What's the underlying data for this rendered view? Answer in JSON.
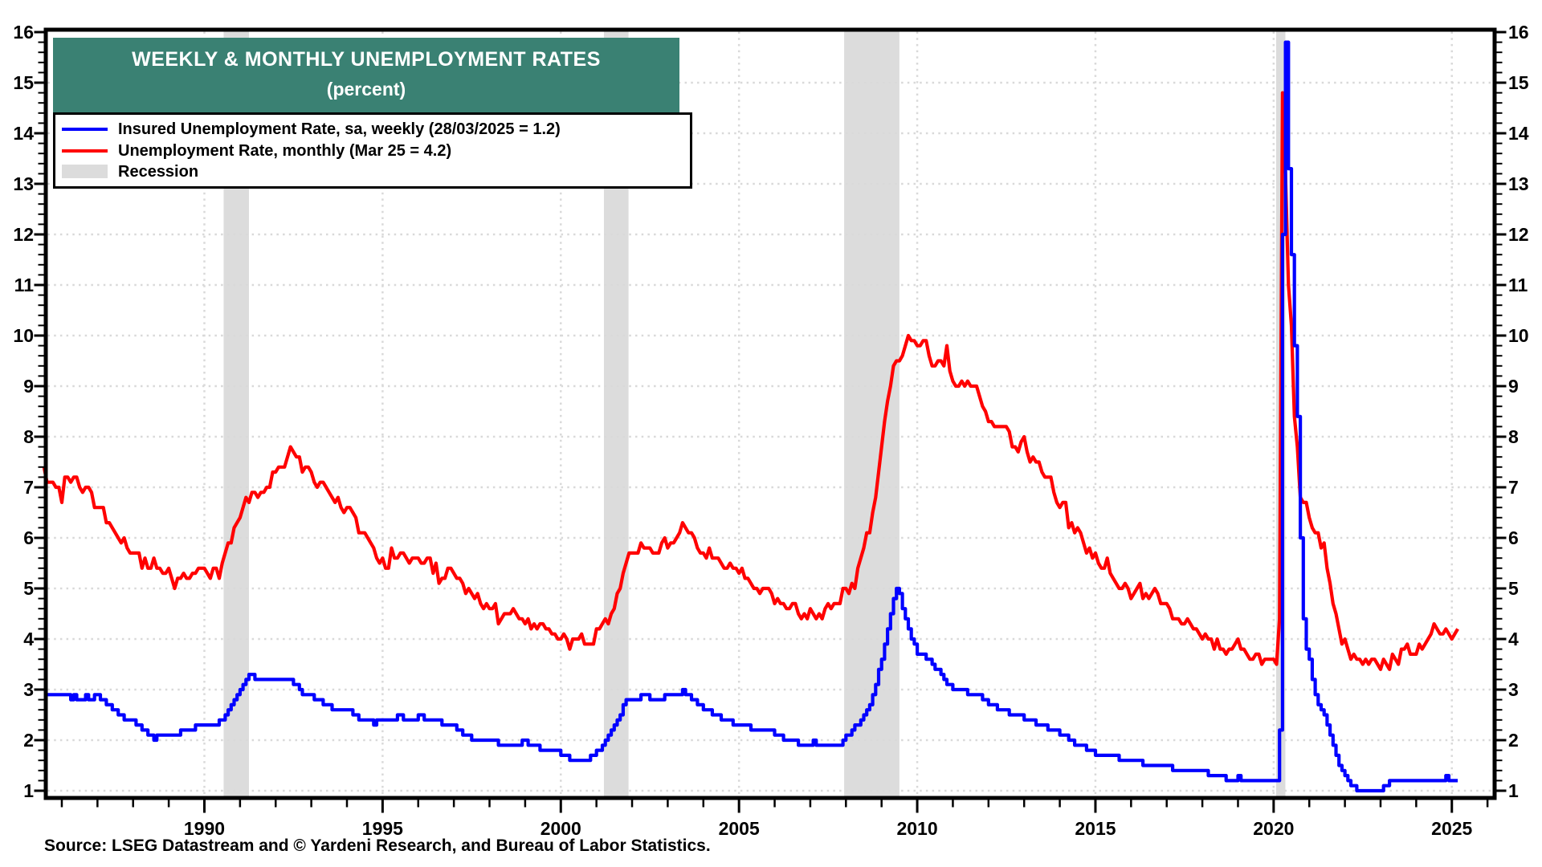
{
  "title": {
    "line1": "WEEKLY & MONTHLY UNEMPLOYMENT RATES",
    "line2": "(percent)"
  },
  "legend": {
    "items": [
      {
        "label": "Insured Unemployment Rate, sa, weekly (28/03/2025 = 1.2)",
        "swatch": "line",
        "color": "#0000FF"
      },
      {
        "label": "Unemployment Rate, monthly (Mar 25 = 4.2)",
        "swatch": "line",
        "color": "#FF0000"
      },
      {
        "label": "Recession",
        "swatch": "box",
        "color": "#DCDCDC"
      }
    ]
  },
  "source": {
    "text": "Source: LSEG Datastream and © Yardeni Research, and Bureau of Labor Statistics."
  },
  "colors": {
    "title_bg": "#3A8173",
    "insured_line": "#0000FF",
    "unemployment_line": "#FF0000",
    "recession_band": "#DCDCDC",
    "grid": "#D9D9D9",
    "axis": "#000000"
  },
  "chart_data": {
    "type": "line",
    "title": "WEEKLY & MONTHLY UNEMPLOYMENT RATES (percent)",
    "xlabel": "",
    "ylabel": "",
    "x_axis": {
      "start": 1985.55,
      "end": 2026.2,
      "major_ticks": [
        1990,
        1995,
        2000,
        2005,
        2010,
        2015,
        2020,
        2025
      ],
      "minor_step": 1
    },
    "y_axis": {
      "min": 1,
      "max": 16,
      "major_step": 1,
      "minor_step": 0.2,
      "labels_both_sides": true
    },
    "grid": {
      "horizontal": true,
      "vertical": true,
      "style": "dotted"
    },
    "legend_position": "top-left",
    "recessions": [
      [
        1990.54,
        1991.25
      ],
      [
        2001.21,
        2001.9
      ],
      [
        2007.95,
        2009.5
      ],
      [
        2020.07,
        2020.33
      ]
    ],
    "series": [
      {
        "name": "Unemployment Rate, monthly (Mar 25 = 4.2)",
        "color": "#FF0000",
        "render": "linear",
        "start_year": 1985.5,
        "points_per_year": 12,
        "values": [
          7.4,
          7.1,
          7.1,
          7.1,
          7.0,
          7.0,
          6.7,
          7.2,
          7.2,
          7.1,
          7.2,
          7.2,
          7.0,
          6.9,
          7.0,
          7.0,
          6.9,
          6.6,
          6.6,
          6.6,
          6.6,
          6.3,
          6.3,
          6.2,
          6.1,
          6.0,
          5.9,
          6.0,
          5.8,
          5.7,
          5.7,
          5.7,
          5.7,
          5.4,
          5.6,
          5.4,
          5.4,
          5.6,
          5.4,
          5.4,
          5.3,
          5.3,
          5.4,
          5.2,
          5.0,
          5.2,
          5.2,
          5.3,
          5.2,
          5.2,
          5.3,
          5.3,
          5.4,
          5.4,
          5.4,
          5.3,
          5.2,
          5.4,
          5.4,
          5.2,
          5.5,
          5.7,
          5.9,
          5.9,
          6.2,
          6.3,
          6.4,
          6.6,
          6.8,
          6.7,
          6.9,
          6.9,
          6.8,
          6.9,
          6.9,
          7.0,
          7.0,
          7.3,
          7.3,
          7.4,
          7.4,
          7.4,
          7.6,
          7.8,
          7.7,
          7.6,
          7.6,
          7.3,
          7.4,
          7.4,
          7.3,
          7.1,
          7.0,
          7.1,
          7.1,
          7.0,
          6.9,
          6.8,
          6.7,
          6.8,
          6.6,
          6.5,
          6.6,
          6.6,
          6.5,
          6.4,
          6.1,
          6.1,
          6.1,
          6.0,
          5.9,
          5.8,
          5.6,
          5.5,
          5.6,
          5.4,
          5.4,
          5.8,
          5.6,
          5.6,
          5.7,
          5.7,
          5.6,
          5.5,
          5.6,
          5.6,
          5.6,
          5.5,
          5.5,
          5.6,
          5.6,
          5.3,
          5.5,
          5.1,
          5.2,
          5.2,
          5.4,
          5.4,
          5.3,
          5.2,
          5.2,
          5.1,
          4.9,
          5.0,
          4.9,
          4.8,
          4.9,
          4.7,
          4.6,
          4.7,
          4.6,
          4.6,
          4.7,
          4.3,
          4.4,
          4.5,
          4.5,
          4.5,
          4.6,
          4.5,
          4.4,
          4.4,
          4.3,
          4.4,
          4.2,
          4.3,
          4.2,
          4.3,
          4.3,
          4.2,
          4.2,
          4.1,
          4.1,
          4.0,
          4.0,
          4.1,
          4.0,
          3.8,
          4.0,
          4.0,
          4.0,
          4.1,
          3.9,
          3.9,
          3.9,
          3.9,
          4.2,
          4.2,
          4.3,
          4.4,
          4.3,
          4.5,
          4.6,
          4.9,
          5.0,
          5.3,
          5.5,
          5.7,
          5.7,
          5.7,
          5.7,
          5.9,
          5.8,
          5.8,
          5.8,
          5.7,
          5.7,
          5.7,
          5.9,
          6.0,
          5.8,
          5.9,
          5.9,
          6.0,
          6.1,
          6.3,
          6.2,
          6.1,
          6.1,
          6.0,
          5.8,
          5.7,
          5.7,
          5.6,
          5.8,
          5.6,
          5.6,
          5.6,
          5.5,
          5.4,
          5.4,
          5.5,
          5.4,
          5.4,
          5.3,
          5.4,
          5.2,
          5.2,
          5.1,
          5.0,
          5.0,
          4.9,
          5.0,
          5.0,
          5.0,
          4.9,
          4.7,
          4.8,
          4.7,
          4.7,
          4.6,
          4.6,
          4.7,
          4.7,
          4.5,
          4.4,
          4.5,
          4.4,
          4.6,
          4.5,
          4.4,
          4.5,
          4.4,
          4.6,
          4.7,
          4.6,
          4.7,
          4.7,
          4.7,
          5.0,
          5.0,
          4.9,
          5.1,
          5.0,
          5.4,
          5.6,
          5.8,
          6.1,
          6.1,
          6.5,
          6.8,
          7.3,
          7.8,
          8.3,
          8.7,
          9.0,
          9.4,
          9.5,
          9.5,
          9.6,
          9.8,
          10.0,
          9.9,
          9.9,
          9.8,
          9.8,
          9.9,
          9.9,
          9.6,
          9.4,
          9.4,
          9.5,
          9.5,
          9.4,
          9.8,
          9.3,
          9.1,
          9.0,
          9.0,
          9.1,
          9.0,
          9.1,
          9.0,
          9.0,
          9.0,
          8.8,
          8.6,
          8.5,
          8.3,
          8.3,
          8.2,
          8.2,
          8.2,
          8.2,
          8.2,
          8.1,
          7.8,
          7.8,
          7.7,
          7.9,
          8.0,
          7.7,
          7.5,
          7.6,
          7.5,
          7.5,
          7.3,
          7.2,
          7.2,
          7.2,
          6.9,
          6.7,
          6.6,
          6.7,
          6.7,
          6.2,
          6.3,
          6.1,
          6.2,
          6.1,
          5.9,
          5.7,
          5.8,
          5.6,
          5.7,
          5.5,
          5.4,
          5.4,
          5.6,
          5.3,
          5.2,
          5.1,
          5.0,
          5.0,
          5.1,
          5.0,
          4.8,
          4.9,
          5.0,
          5.1,
          4.8,
          4.9,
          4.8,
          4.9,
          5.0,
          4.9,
          4.7,
          4.7,
          4.7,
          4.6,
          4.4,
          4.4,
          4.4,
          4.3,
          4.3,
          4.4,
          4.3,
          4.2,
          4.2,
          4.1,
          4.0,
          4.1,
          4.0,
          4.0,
          3.8,
          4.0,
          3.8,
          3.8,
          3.7,
          3.8,
          3.8,
          3.9,
          4.0,
          3.8,
          3.8,
          3.7,
          3.6,
          3.6,
          3.7,
          3.7,
          3.5,
          3.6,
          3.6,
          3.6,
          3.6,
          3.5,
          4.4,
          14.8,
          13.2,
          11.0,
          10.2,
          8.4,
          7.8,
          6.8,
          6.7,
          6.7,
          6.4,
          6.2,
          6.1,
          6.1,
          5.8,
          5.9,
          5.4,
          5.1,
          4.7,
          4.5,
          4.2,
          3.9,
          4.0,
          3.8,
          3.6,
          3.7,
          3.6,
          3.6,
          3.5,
          3.6,
          3.5,
          3.6,
          3.6,
          3.5,
          3.4,
          3.6,
          3.5,
          3.4,
          3.7,
          3.6,
          3.5,
          3.8,
          3.8,
          3.9,
          3.7,
          3.7,
          3.7,
          3.9,
          3.8,
          3.9,
          4.0,
          4.1,
          4.3,
          4.2,
          4.1,
          4.1,
          4.2,
          4.1,
          4.0,
          4.1,
          4.2
        ]
      },
      {
        "name": "Insured Unemployment Rate, sa, weekly (28/03/2025 = 1.2)",
        "color": "#0000FF",
        "render": "step",
        "start_year": 1985.5,
        "points_per_year": 12,
        "values": [
          2.9,
          2.9,
          2.9,
          2.9,
          2.9,
          2.9,
          2.9,
          2.9,
          2.9,
          2.8,
          2.9,
          2.8,
          2.8,
          2.8,
          2.9,
          2.8,
          2.8,
          2.9,
          2.9,
          2.8,
          2.8,
          2.7,
          2.7,
          2.6,
          2.6,
          2.5,
          2.5,
          2.4,
          2.4,
          2.4,
          2.4,
          2.3,
          2.3,
          2.2,
          2.2,
          2.1,
          2.1,
          2.0,
          2.1,
          2.1,
          2.1,
          2.1,
          2.1,
          2.1,
          2.1,
          2.1,
          2.2,
          2.2,
          2.2,
          2.2,
          2.2,
          2.3,
          2.3,
          2.3,
          2.3,
          2.3,
          2.3,
          2.3,
          2.3,
          2.4,
          2.4,
          2.5,
          2.6,
          2.7,
          2.8,
          2.9,
          3.0,
          3.1,
          3.2,
          3.3,
          3.3,
          3.2,
          3.2,
          3.2,
          3.2,
          3.2,
          3.2,
          3.2,
          3.2,
          3.2,
          3.2,
          3.2,
          3.2,
          3.2,
          3.1,
          3.1,
          3.0,
          2.9,
          2.9,
          2.9,
          2.9,
          2.8,
          2.8,
          2.8,
          2.7,
          2.7,
          2.7,
          2.6,
          2.6,
          2.6,
          2.6,
          2.6,
          2.6,
          2.6,
          2.5,
          2.5,
          2.4,
          2.4,
          2.4,
          2.4,
          2.4,
          2.3,
          2.4,
          2.4,
          2.4,
          2.4,
          2.4,
          2.4,
          2.4,
          2.5,
          2.5,
          2.4,
          2.4,
          2.4,
          2.4,
          2.4,
          2.5,
          2.5,
          2.4,
          2.4,
          2.4,
          2.4,
          2.4,
          2.4,
          2.3,
          2.3,
          2.3,
          2.3,
          2.3,
          2.2,
          2.2,
          2.1,
          2.1,
          2.1,
          2.0,
          2.0,
          2.0,
          2.0,
          2.0,
          2.0,
          2.0,
          2.0,
          2.0,
          1.9,
          1.9,
          1.9,
          1.9,
          1.9,
          1.9,
          1.9,
          1.9,
          2.0,
          2.0,
          1.9,
          1.9,
          1.9,
          1.9,
          1.8,
          1.8,
          1.8,
          1.8,
          1.8,
          1.8,
          1.8,
          1.7,
          1.7,
          1.7,
          1.6,
          1.6,
          1.6,
          1.6,
          1.6,
          1.6,
          1.6,
          1.7,
          1.7,
          1.8,
          1.8,
          1.9,
          2.0,
          2.1,
          2.2,
          2.3,
          2.4,
          2.5,
          2.7,
          2.8,
          2.8,
          2.8,
          2.8,
          2.8,
          2.9,
          2.9,
          2.9,
          2.8,
          2.8,
          2.8,
          2.8,
          2.8,
          2.9,
          2.9,
          2.9,
          2.9,
          2.9,
          2.9,
          3.0,
          2.9,
          2.9,
          2.8,
          2.8,
          2.7,
          2.7,
          2.6,
          2.6,
          2.6,
          2.5,
          2.5,
          2.5,
          2.4,
          2.4,
          2.4,
          2.4,
          2.3,
          2.3,
          2.3,
          2.3,
          2.3,
          2.3,
          2.2,
          2.2,
          2.2,
          2.2,
          2.2,
          2.2,
          2.2,
          2.2,
          2.1,
          2.1,
          2.1,
          2.0,
          2.0,
          2.0,
          2.0,
          2.0,
          1.9,
          1.9,
          1.9,
          1.9,
          1.9,
          2.0,
          1.9,
          1.9,
          1.9,
          1.9,
          1.9,
          1.9,
          1.9,
          1.9,
          1.9,
          2.0,
          2.1,
          2.1,
          2.2,
          2.3,
          2.3,
          2.4,
          2.5,
          2.6,
          2.7,
          2.9,
          3.1,
          3.4,
          3.6,
          3.9,
          4.2,
          4.5,
          4.8,
          5.0,
          4.9,
          4.6,
          4.4,
          4.2,
          4.0,
          3.9,
          3.7,
          3.7,
          3.7,
          3.6,
          3.6,
          3.5,
          3.4,
          3.4,
          3.3,
          3.2,
          3.1,
          3.1,
          3.0,
          3.0,
          3.0,
          3.0,
          3.0,
          2.9,
          2.9,
          2.9,
          2.9,
          2.9,
          2.8,
          2.8,
          2.7,
          2.7,
          2.7,
          2.6,
          2.6,
          2.6,
          2.6,
          2.5,
          2.5,
          2.5,
          2.5,
          2.5,
          2.4,
          2.4,
          2.4,
          2.4,
          2.3,
          2.3,
          2.3,
          2.3,
          2.2,
          2.2,
          2.2,
          2.2,
          2.1,
          2.1,
          2.1,
          2.0,
          2.0,
          1.9,
          1.9,
          1.9,
          1.9,
          1.8,
          1.8,
          1.8,
          1.7,
          1.7,
          1.7,
          1.7,
          1.7,
          1.7,
          1.7,
          1.7,
          1.6,
          1.6,
          1.6,
          1.6,
          1.6,
          1.6,
          1.6,
          1.6,
          1.5,
          1.5,
          1.5,
          1.5,
          1.5,
          1.5,
          1.5,
          1.5,
          1.5,
          1.5,
          1.4,
          1.4,
          1.4,
          1.4,
          1.4,
          1.4,
          1.4,
          1.4,
          1.4,
          1.4,
          1.4,
          1.4,
          1.3,
          1.3,
          1.3,
          1.3,
          1.3,
          1.3,
          1.2,
          1.2,
          1.2,
          1.2,
          1.3,
          1.2,
          1.2,
          1.2,
          1.2,
          1.2,
          1.2,
          1.2,
          1.2,
          1.2,
          1.2,
          1.2,
          1.2,
          1.2,
          2.2,
          12.0,
          15.8,
          13.3,
          11.6,
          9.8,
          8.4,
          6.0,
          4.4,
          3.8,
          3.6,
          3.2,
          2.9,
          2.7,
          2.6,
          2.5,
          2.3,
          2.1,
          1.9,
          1.7,
          1.5,
          1.4,
          1.3,
          1.2,
          1.1,
          1.1,
          1.0,
          1.0,
          1.0,
          1.0,
          1.0,
          1.0,
          1.0,
          1.0,
          1.0,
          1.1,
          1.1,
          1.2,
          1.2,
          1.2,
          1.2,
          1.2,
          1.2,
          1.2,
          1.2,
          1.2,
          1.2,
          1.2,
          1.2,
          1.2,
          1.2,
          1.2,
          1.2,
          1.2,
          1.2,
          1.2,
          1.3,
          1.2,
          1.2,
          1.2,
          1.2
        ]
      }
    ]
  }
}
